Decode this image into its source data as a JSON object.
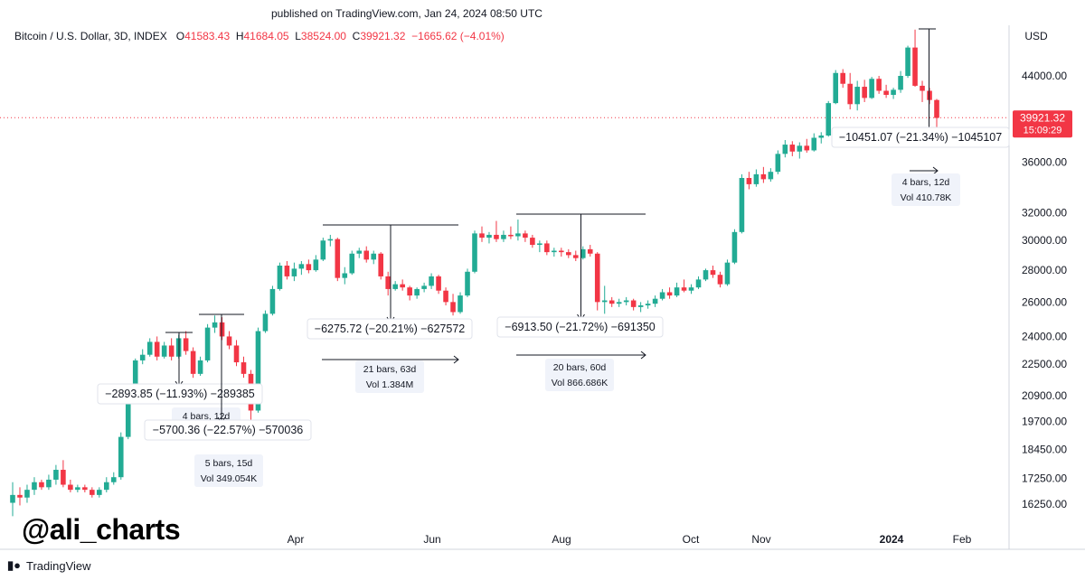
{
  "header": {
    "published": "published on TradingView.com, Jan 24, 2024 08:50 UTC"
  },
  "legend": {
    "symbol": "Bitcoin / U.S. Dollar, 3D, INDEX",
    "o_label": "O",
    "o_value": "41583.43",
    "h_label": "H",
    "h_value": "41684.05",
    "l_label": "L",
    "l_value": "38524.00",
    "c_label": "C",
    "c_value": "39921.32",
    "change": "−1665.62 (−4.01%)"
  },
  "currency": "USD",
  "price_tag": {
    "price": "39921.32",
    "countdown": "15:09:29"
  },
  "watermark": "@ali_charts",
  "footer": {
    "logo_text": "TradingView"
  },
  "colors": {
    "up": "#22ab94",
    "down": "#f23645",
    "line": "#131722",
    "tag_bg": "#f23645"
  },
  "chart_data": {
    "type": "candlestick",
    "title": "Bitcoin / U.S. Dollar, 3D, INDEX",
    "y_axis_ticks": [
      "44000.00",
      "36000.00",
      "32000.00",
      "30000.00",
      "28000.00",
      "26000.00",
      "24000.00",
      "22500.00",
      "20900.00",
      "19700.00",
      "18450.00",
      "17250.00",
      "16250.00"
    ],
    "y_scale": "log",
    "x_axis_ticks": [
      "Apr",
      "Jun",
      "Aug",
      "Oct",
      "Nov",
      "2024",
      "Feb"
    ],
    "current_price": 39921.32,
    "candles": [
      {
        "o": 16300,
        "h": 17100,
        "l": 15800,
        "c": 16600
      },
      {
        "o": 16600,
        "h": 16900,
        "l": 16200,
        "c": 16500
      },
      {
        "o": 16500,
        "h": 17000,
        "l": 16300,
        "c": 16800
      },
      {
        "o": 16800,
        "h": 17300,
        "l": 16600,
        "c": 17100
      },
      {
        "o": 17100,
        "h": 17200,
        "l": 16800,
        "c": 16900
      },
      {
        "o": 16900,
        "h": 17400,
        "l": 16800,
        "c": 17200
      },
      {
        "o": 17200,
        "h": 17800,
        "l": 17000,
        "c": 17600
      },
      {
        "o": 17600,
        "h": 18000,
        "l": 16900,
        "c": 17000
      },
      {
        "o": 17000,
        "h": 17200,
        "l": 16700,
        "c": 16800
      },
      {
        "o": 16800,
        "h": 17000,
        "l": 16700,
        "c": 16900
      },
      {
        "o": 16900,
        "h": 17000,
        "l": 16700,
        "c": 16800
      },
      {
        "o": 16800,
        "h": 16900,
        "l": 16500,
        "c": 16600
      },
      {
        "o": 16600,
        "h": 16900,
        "l": 16500,
        "c": 16800
      },
      {
        "o": 16800,
        "h": 17300,
        "l": 16700,
        "c": 17100
      },
      {
        "o": 17100,
        "h": 17500,
        "l": 17000,
        "c": 17300
      },
      {
        "o": 17300,
        "h": 19200,
        "l": 17200,
        "c": 19000
      },
      {
        "o": 19000,
        "h": 21000,
        "l": 18900,
        "c": 20800
      },
      {
        "o": 20800,
        "h": 22800,
        "l": 20700,
        "c": 22700
      },
      {
        "o": 22700,
        "h": 23300,
        "l": 22500,
        "c": 23000
      },
      {
        "o": 23000,
        "h": 23900,
        "l": 22900,
        "c": 23700
      },
      {
        "o": 23700,
        "h": 24000,
        "l": 22700,
        "c": 22900
      },
      {
        "o": 22900,
        "h": 23700,
        "l": 22800,
        "c": 23500
      },
      {
        "o": 23500,
        "h": 23900,
        "l": 22700,
        "c": 22900
      },
      {
        "o": 22900,
        "h": 24100,
        "l": 22800,
        "c": 23900
      },
      {
        "o": 23900,
        "h": 24300,
        "l": 23000,
        "c": 23200
      },
      {
        "o": 23200,
        "h": 23400,
        "l": 21800,
        "c": 22000
      },
      {
        "o": 22000,
        "h": 22900,
        "l": 21900,
        "c": 22700
      },
      {
        "o": 22700,
        "h": 24700,
        "l": 22600,
        "c": 24500
      },
      {
        "o": 24500,
        "h": 25200,
        "l": 24200,
        "c": 24800
      },
      {
        "o": 24800,
        "h": 25100,
        "l": 23800,
        "c": 24000
      },
      {
        "o": 24000,
        "h": 24300,
        "l": 23300,
        "c": 23500
      },
      {
        "o": 23500,
        "h": 23800,
        "l": 22400,
        "c": 22600
      },
      {
        "o": 22600,
        "h": 22900,
        "l": 21800,
        "c": 22000
      },
      {
        "o": 22000,
        "h": 22200,
        "l": 19600,
        "c": 20200
      },
      {
        "o": 20200,
        "h": 24500,
        "l": 20100,
        "c": 24300
      },
      {
        "o": 24300,
        "h": 25500,
        "l": 24200,
        "c": 25300
      },
      {
        "o": 25300,
        "h": 27000,
        "l": 25200,
        "c": 26800
      },
      {
        "o": 26800,
        "h": 28500,
        "l": 26700,
        "c": 28300
      },
      {
        "o": 28300,
        "h": 28600,
        "l": 27400,
        "c": 27600
      },
      {
        "o": 27600,
        "h": 28500,
        "l": 27300,
        "c": 28100
      },
      {
        "o": 28100,
        "h": 28600,
        "l": 27700,
        "c": 28400
      },
      {
        "o": 28400,
        "h": 28700,
        "l": 27800,
        "c": 28000
      },
      {
        "o": 28000,
        "h": 29000,
        "l": 27900,
        "c": 28700
      },
      {
        "o": 28700,
        "h": 30200,
        "l": 28600,
        "c": 30000
      },
      {
        "o": 30000,
        "h": 30400,
        "l": 29600,
        "c": 30100
      },
      {
        "o": 30100,
        "h": 30200,
        "l": 27300,
        "c": 27500
      },
      {
        "o": 27500,
        "h": 28200,
        "l": 27100,
        "c": 27800
      },
      {
        "o": 27800,
        "h": 29300,
        "l": 27700,
        "c": 29100
      },
      {
        "o": 29100,
        "h": 29500,
        "l": 28800,
        "c": 29300
      },
      {
        "o": 29300,
        "h": 29600,
        "l": 28500,
        "c": 28700
      },
      {
        "o": 28700,
        "h": 29300,
        "l": 28400,
        "c": 29100
      },
      {
        "o": 29100,
        "h": 29200,
        "l": 27400,
        "c": 27600
      },
      {
        "o": 27600,
        "h": 27900,
        "l": 26400,
        "c": 26800
      },
      {
        "o": 26800,
        "h": 27300,
        "l": 26700,
        "c": 27100
      },
      {
        "o": 27100,
        "h": 27400,
        "l": 26700,
        "c": 26900
      },
      {
        "o": 26900,
        "h": 27000,
        "l": 26100,
        "c": 26400
      },
      {
        "o": 26400,
        "h": 26900,
        "l": 26200,
        "c": 26800
      },
      {
        "o": 26800,
        "h": 27200,
        "l": 26600,
        "c": 27000
      },
      {
        "o": 27000,
        "h": 27800,
        "l": 26800,
        "c": 27600
      },
      {
        "o": 27600,
        "h": 27700,
        "l": 26500,
        "c": 26700
      },
      {
        "o": 26700,
        "h": 26900,
        "l": 25800,
        "c": 26000
      },
      {
        "o": 26000,
        "h": 26500,
        "l": 25200,
        "c": 25400
      },
      {
        "o": 25400,
        "h": 26600,
        "l": 25300,
        "c": 26400
      },
      {
        "o": 26400,
        "h": 28100,
        "l": 26300,
        "c": 27900
      },
      {
        "o": 27900,
        "h": 30700,
        "l": 27800,
        "c": 30500
      },
      {
        "o": 30500,
        "h": 31000,
        "l": 29900,
        "c": 30200
      },
      {
        "o": 30200,
        "h": 30600,
        "l": 29800,
        "c": 30400
      },
      {
        "o": 30400,
        "h": 31400,
        "l": 29900,
        "c": 30100
      },
      {
        "o": 30100,
        "h": 30700,
        "l": 29900,
        "c": 30400
      },
      {
        "o": 30400,
        "h": 31000,
        "l": 30100,
        "c": 30300
      },
      {
        "o": 30300,
        "h": 31500,
        "l": 30000,
        "c": 30500
      },
      {
        "o": 30500,
        "h": 30700,
        "l": 29900,
        "c": 30200
      },
      {
        "o": 30200,
        "h": 30400,
        "l": 29500,
        "c": 29700
      },
      {
        "o": 29700,
        "h": 30000,
        "l": 29200,
        "c": 29800
      },
      {
        "o": 29800,
        "h": 30000,
        "l": 29000,
        "c": 29200
      },
      {
        "o": 29200,
        "h": 29500,
        "l": 28900,
        "c": 29300
      },
      {
        "o": 29300,
        "h": 29500,
        "l": 28900,
        "c": 29200
      },
      {
        "o": 29200,
        "h": 29400,
        "l": 28800,
        "c": 29000
      },
      {
        "o": 29000,
        "h": 29300,
        "l": 28600,
        "c": 28800
      },
      {
        "o": 28800,
        "h": 29600,
        "l": 28700,
        "c": 29400
      },
      {
        "o": 29400,
        "h": 29700,
        "l": 28900,
        "c": 29100
      },
      {
        "o": 29100,
        "h": 29200,
        "l": 25500,
        "c": 26000
      },
      {
        "o": 26000,
        "h": 27000,
        "l": 25300,
        "c": 26100
      },
      {
        "o": 26100,
        "h": 26300,
        "l": 25700,
        "c": 25900
      },
      {
        "o": 25900,
        "h": 26200,
        "l": 25700,
        "c": 26000
      },
      {
        "o": 26000,
        "h": 26300,
        "l": 25800,
        "c": 26100
      },
      {
        "o": 26100,
        "h": 26200,
        "l": 25500,
        "c": 25700
      },
      {
        "o": 25700,
        "h": 26000,
        "l": 25400,
        "c": 25800
      },
      {
        "o": 25800,
        "h": 26100,
        "l": 25600,
        "c": 25900
      },
      {
        "o": 25900,
        "h": 26400,
        "l": 25700,
        "c": 26200
      },
      {
        "o": 26200,
        "h": 26800,
        "l": 26100,
        "c": 26600
      },
      {
        "o": 26600,
        "h": 26900,
        "l": 26200,
        "c": 26400
      },
      {
        "o": 26400,
        "h": 27200,
        "l": 26300,
        "c": 26900
      },
      {
        "o": 26900,
        "h": 27400,
        "l": 26600,
        "c": 26700
      },
      {
        "o": 26700,
        "h": 27100,
        "l": 26500,
        "c": 26900
      },
      {
        "o": 26900,
        "h": 27600,
        "l": 26800,
        "c": 27400
      },
      {
        "o": 27400,
        "h": 28100,
        "l": 27300,
        "c": 28000
      },
      {
        "o": 28000,
        "h": 28300,
        "l": 27500,
        "c": 27700
      },
      {
        "o": 27700,
        "h": 27900,
        "l": 26900,
        "c": 27100
      },
      {
        "o": 27100,
        "h": 28700,
        "l": 27000,
        "c": 28500
      },
      {
        "o": 28500,
        "h": 30800,
        "l": 28400,
        "c": 30600
      },
      {
        "o": 30600,
        "h": 35000,
        "l": 30500,
        "c": 34700
      },
      {
        "o": 34700,
        "h": 35200,
        "l": 33800,
        "c": 34200
      },
      {
        "o": 34200,
        "h": 35400,
        "l": 34000,
        "c": 35000
      },
      {
        "o": 35000,
        "h": 35600,
        "l": 34300,
        "c": 34600
      },
      {
        "o": 34600,
        "h": 35500,
        "l": 34400,
        "c": 35200
      },
      {
        "o": 35200,
        "h": 37000,
        "l": 35000,
        "c": 36700
      },
      {
        "o": 36700,
        "h": 37900,
        "l": 36400,
        "c": 37500
      },
      {
        "o": 37500,
        "h": 37800,
        "l": 36500,
        "c": 36900
      },
      {
        "o": 36900,
        "h": 37700,
        "l": 36300,
        "c": 37400
      },
      {
        "o": 37400,
        "h": 38000,
        "l": 36800,
        "c": 37000
      },
      {
        "o": 37000,
        "h": 38500,
        "l": 36900,
        "c": 38100
      },
      {
        "o": 38100,
        "h": 38600,
        "l": 37600,
        "c": 38300
      },
      {
        "o": 38300,
        "h": 41500,
        "l": 38200,
        "c": 41300
      },
      {
        "o": 41300,
        "h": 44600,
        "l": 41200,
        "c": 44300
      },
      {
        "o": 44300,
        "h": 44700,
        "l": 42800,
        "c": 43200
      },
      {
        "o": 43200,
        "h": 44300,
        "l": 40700,
        "c": 41200
      },
      {
        "o": 41200,
        "h": 43500,
        "l": 40600,
        "c": 42900
      },
      {
        "o": 42900,
        "h": 43600,
        "l": 41400,
        "c": 41800
      },
      {
        "o": 41800,
        "h": 43900,
        "l": 41700,
        "c": 43700
      },
      {
        "o": 43700,
        "h": 44000,
        "l": 42200,
        "c": 42500
      },
      {
        "o": 42500,
        "h": 43100,
        "l": 41800,
        "c": 42100
      },
      {
        "o": 42100,
        "h": 42800,
        "l": 41700,
        "c": 42600
      },
      {
        "o": 42600,
        "h": 44500,
        "l": 42300,
        "c": 44000
      },
      {
        "o": 44000,
        "h": 47200,
        "l": 43800,
        "c": 47000
      },
      {
        "o": 47000,
        "h": 49000,
        "l": 42900,
        "c": 43000
      },
      {
        "o": 43000,
        "h": 43500,
        "l": 41400,
        "c": 42500
      },
      {
        "o": 42500,
        "h": 42800,
        "l": 41200,
        "c": 41600
      },
      {
        "o": 41600,
        "h": 41700,
        "l": 38500,
        "c": 39900
      }
    ],
    "annotations": [
      {
        "label": "−2893.85 (−11.93%) −289385",
        "bars": "4 bars, 12d"
      },
      {
        "label": "−5700.36 (−22.57%) −570036",
        "bars": "5 bars, 15d",
        "vol": "Vol 349.054K"
      },
      {
        "label": "−6275.72 (−20.21%) −627572",
        "bars": "21 bars, 63d",
        "vol": "Vol 1.384M"
      },
      {
        "label": "−6913.50 (−21.72%) −691350",
        "bars": "20 bars, 60d",
        "vol": "Vol 866.686K"
      },
      {
        "label": "−10451.07 (−21.34%) −1045107",
        "bars": "4 bars, 12d",
        "vol": "Vol 410.78K"
      }
    ]
  }
}
